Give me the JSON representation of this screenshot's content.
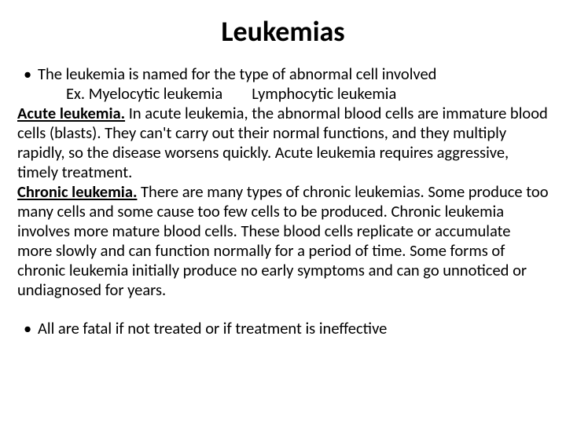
{
  "title": "Leukemias",
  "bullet1": "The leukemia is named for the type of abnormal cell involved",
  "ex_line": "Ex. Myelocytic leukemia        Lymphocytic leukemia",
  "acute_heading": "Acute leukemia.",
  "acute_body": " In acute leukemia, the abnormal blood cells are immature blood cells (blasts). They can't carry out their normal functions, and they multiply rapidly, so the disease worsens quickly. Acute leukemia requires aggressive, timely treatment.",
  "chronic_heading": "Chronic leukemia.",
  "chronic_body": " There are many types of chronic leukemias. Some produce too many cells and some cause too few cells to be produced. Chronic leukemia involves more mature blood cells. These blood cells replicate or accumulate more slowly and can function normally for a period of time. Some forms of chronic leukemia initially produce no early symptoms and can go unnoticed or undiagnosed for years.",
  "bullet2": "All are fatal if not treated or if treatment is ineffective"
}
